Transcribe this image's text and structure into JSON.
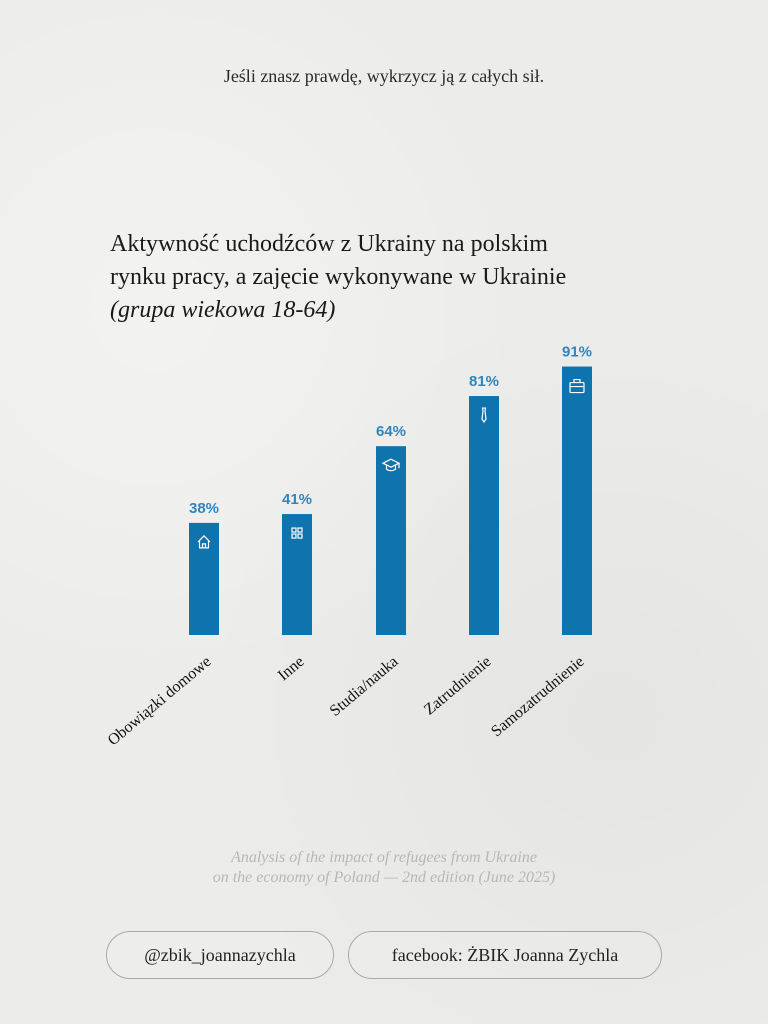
{
  "header": {
    "quote": "Jeśli znasz prawdę, wykrzycz ją z całych sił."
  },
  "chart_data": {
    "type": "bar",
    "title": [
      "Aktywność uchodźców z Ukrainy na polskim",
      "rynku pracy, a zajęcie wykonywane w Ukrainie"
    ],
    "subtitle": "(grupa wiekowa 18-64)",
    "categories": [
      "Obowiązki domowe",
      "Inne",
      "Studia/nauka",
      "Zatrudnienie",
      "Samozatrudnienie"
    ],
    "values": [
      38,
      41,
      64,
      81,
      91
    ],
    "value_labels": [
      "38%",
      "41%",
      "64%",
      "81%",
      "91%"
    ],
    "icons": [
      "house-icon",
      "grid-icon",
      "graduation-cap-icon",
      "tie-icon",
      "briefcase-icon"
    ],
    "bar_color": "#0f73ad",
    "label_color": "#2f86bf",
    "ylim": [
      0,
      100
    ],
    "grid": false,
    "legend": "none"
  },
  "footer": {
    "source_lines": [
      "Analysis of the impact of refugees from Ukraine",
      "on the economy of Poland — 2nd edition (June 2025)"
    ],
    "instagram": "@zbik_joannazychla",
    "facebook": "facebook: ŻBIK Joanna Zychla"
  }
}
